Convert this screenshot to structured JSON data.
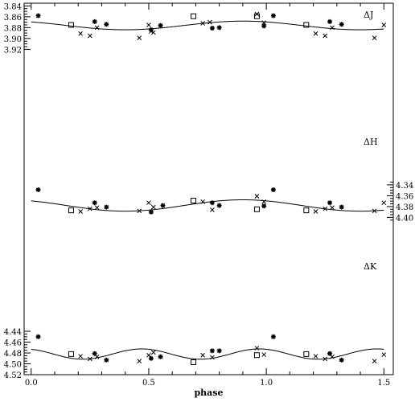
{
  "chart_data": {
    "type": "scatter",
    "title": "",
    "xlabel": "phase",
    "x_ticks": [
      "0.0",
      "0.5",
      "1.0",
      "1.5"
    ],
    "x_tick_values": [
      0,
      0.5,
      1.0,
      1.5
    ],
    "xlim": [
      -0.03,
      1.54
    ],
    "ylim": [
      4.52,
      3.835
    ],
    "y_inverted": true,
    "left_axis": {
      "ticks": [
        3.84,
        3.86,
        3.88,
        3.9,
        3.92,
        4.44,
        4.46,
        4.48,
        4.5,
        4.52
      ],
      "tick_labels": [
        "3.84",
        "3.86",
        "3.88",
        "3.90",
        "3.92",
        "4.44",
        "4.46",
        "4.48",
        "4.50",
        "4.52"
      ]
    },
    "right_axis": {
      "offset": -0.17,
      "ticks": [
        4.34,
        4.36,
        4.38,
        4.4
      ],
      "tick_labels": [
        "4.34",
        "4.36",
        "4.38",
        "4.40"
      ]
    },
    "grid": false,
    "panels": [
      {
        "name": "ΔJ",
        "axis": "left",
        "fit": {
          "mean": 3.876,
          "amplitude": 0.008,
          "phase_of_peak": 0.9,
          "harmonic": 1
        },
        "points": [
          {
            "marker": "star",
            "x": 0.03,
            "y": 3.858
          },
          {
            "marker": "star",
            "x": 0.27,
            "y": 3.869
          },
          {
            "marker": "star",
            "x": 0.32,
            "y": 3.874
          },
          {
            "marker": "star",
            "x": 0.51,
            "y": 3.884
          },
          {
            "marker": "star",
            "x": 0.55,
            "y": 3.876
          },
          {
            "marker": "star",
            "x": 0.77,
            "y": 3.881
          },
          {
            "marker": "star",
            "x": 0.8,
            "y": 3.88
          },
          {
            "marker": "star",
            "x": 0.99,
            "y": 3.877
          },
          {
            "marker": "star",
            "x": 1.03,
            "y": 3.858
          },
          {
            "marker": "star",
            "x": 1.27,
            "y": 3.869
          },
          {
            "marker": "star",
            "x": 1.32,
            "y": 3.874
          },
          {
            "marker": "cross",
            "x": 0.21,
            "y": 3.891
          },
          {
            "marker": "cross",
            "x": 0.25,
            "y": 3.895
          },
          {
            "marker": "cross",
            "x": 0.28,
            "y": 3.88
          },
          {
            "marker": "cross",
            "x": 0.46,
            "y": 3.899
          },
          {
            "marker": "cross",
            "x": 0.5,
            "y": 3.875
          },
          {
            "marker": "cross",
            "x": 0.51,
            "y": 3.887
          },
          {
            "marker": "cross",
            "x": 0.52,
            "y": 3.889
          },
          {
            "marker": "cross",
            "x": 0.73,
            "y": 3.872
          },
          {
            "marker": "cross",
            "x": 0.76,
            "y": 3.87
          },
          {
            "marker": "cross",
            "x": 0.96,
            "y": 3.855
          },
          {
            "marker": "cross",
            "x": 0.99,
            "y": 3.871
          },
          {
            "marker": "cross",
            "x": 1.21,
            "y": 3.891
          },
          {
            "marker": "cross",
            "x": 1.25,
            "y": 3.895
          },
          {
            "marker": "cross",
            "x": 1.28,
            "y": 3.88
          },
          {
            "marker": "cross",
            "x": 1.46,
            "y": 3.899
          },
          {
            "marker": "cross",
            "x": 1.5,
            "y": 3.875
          },
          {
            "marker": "square",
            "x": 0.17,
            "y": 3.875
          },
          {
            "marker": "square",
            "x": 0.69,
            "y": 3.859
          },
          {
            "marker": "square",
            "x": 0.96,
            "y": 3.859
          },
          {
            "marker": "square",
            "x": 1.17,
            "y": 3.875
          }
        ]
      },
      {
        "name": "ΔH",
        "axis": "right",
        "fit": {
          "mean": 4.378,
          "amplitude": 0.0105,
          "phase_of_peak": 0.9,
          "harmonic": 1
        },
        "points": [
          {
            "marker": "star",
            "x": 0.03,
            "y": 4.349
          },
          {
            "marker": "star",
            "x": 0.27,
            "y": 4.373
          },
          {
            "marker": "star",
            "x": 0.32,
            "y": 4.381
          },
          {
            "marker": "star",
            "x": 0.51,
            "y": 4.39
          },
          {
            "marker": "star",
            "x": 0.56,
            "y": 4.378
          },
          {
            "marker": "star",
            "x": 0.77,
            "y": 4.373
          },
          {
            "marker": "star",
            "x": 0.8,
            "y": 4.378
          },
          {
            "marker": "star",
            "x": 0.99,
            "y": 4.379
          },
          {
            "marker": "star",
            "x": 1.03,
            "y": 4.349
          },
          {
            "marker": "star",
            "x": 1.27,
            "y": 4.373
          },
          {
            "marker": "star",
            "x": 1.32,
            "y": 4.381
          },
          {
            "marker": "cross",
            "x": 0.21,
            "y": 4.389
          },
          {
            "marker": "cross",
            "x": 0.25,
            "y": 4.384
          },
          {
            "marker": "cross",
            "x": 0.28,
            "y": 4.382
          },
          {
            "marker": "cross",
            "x": 0.46,
            "y": 4.388
          },
          {
            "marker": "cross",
            "x": 0.5,
            "y": 4.373
          },
          {
            "marker": "cross",
            "x": 0.52,
            "y": 4.381
          },
          {
            "marker": "cross",
            "x": 0.73,
            "y": 4.371
          },
          {
            "marker": "cross",
            "x": 0.77,
            "y": 4.386
          },
          {
            "marker": "cross",
            "x": 0.96,
            "y": 4.361
          },
          {
            "marker": "cross",
            "x": 0.99,
            "y": 4.371
          },
          {
            "marker": "cross",
            "x": 1.21,
            "y": 4.389
          },
          {
            "marker": "cross",
            "x": 1.25,
            "y": 4.384
          },
          {
            "marker": "cross",
            "x": 1.28,
            "y": 4.382
          },
          {
            "marker": "cross",
            "x": 1.46,
            "y": 4.388
          },
          {
            "marker": "cross",
            "x": 1.5,
            "y": 4.373
          },
          {
            "marker": "square",
            "x": 0.17,
            "y": 4.387
          },
          {
            "marker": "square",
            "x": 0.69,
            "y": 4.369
          },
          {
            "marker": "square",
            "x": 0.96,
            "y": 4.385
          },
          {
            "marker": "square",
            "x": 1.17,
            "y": 4.387
          }
        ]
      },
      {
        "name": "ΔK",
        "axis": "left",
        "fit": {
          "mean": 4.482,
          "amplitude": 0.0095,
          "phase_of_peak": 0.97,
          "harmonic": 2
        },
        "points": [
          {
            "marker": "star",
            "x": 0.03,
            "y": 4.45
          },
          {
            "marker": "star",
            "x": 0.27,
            "y": 4.481
          },
          {
            "marker": "star",
            "x": 0.32,
            "y": 4.493
          },
          {
            "marker": "star",
            "x": 0.51,
            "y": 4.49
          },
          {
            "marker": "star",
            "x": 0.55,
            "y": 4.487
          },
          {
            "marker": "star",
            "x": 0.77,
            "y": 4.476
          },
          {
            "marker": "star",
            "x": 0.8,
            "y": 4.476
          },
          {
            "marker": "star",
            "x": 1.03,
            "y": 4.45
          },
          {
            "marker": "star",
            "x": 1.27,
            "y": 4.481
          },
          {
            "marker": "star",
            "x": 1.32,
            "y": 4.493
          },
          {
            "marker": "cross",
            "x": 0.21,
            "y": 4.486
          },
          {
            "marker": "cross",
            "x": 0.25,
            "y": 4.491
          },
          {
            "marker": "cross",
            "x": 0.28,
            "y": 4.487
          },
          {
            "marker": "cross",
            "x": 0.46,
            "y": 4.495
          },
          {
            "marker": "cross",
            "x": 0.5,
            "y": 4.484
          },
          {
            "marker": "cross",
            "x": 0.52,
            "y": 4.479
          },
          {
            "marker": "cross",
            "x": 0.73,
            "y": 4.484
          },
          {
            "marker": "cross",
            "x": 0.77,
            "y": 4.488
          },
          {
            "marker": "cross",
            "x": 0.96,
            "y": 4.471
          },
          {
            "marker": "cross",
            "x": 0.99,
            "y": 4.483
          },
          {
            "marker": "cross",
            "x": 1.21,
            "y": 4.486
          },
          {
            "marker": "cross",
            "x": 1.25,
            "y": 4.491
          },
          {
            "marker": "cross",
            "x": 1.28,
            "y": 4.487
          },
          {
            "marker": "cross",
            "x": 1.46,
            "y": 4.495
          },
          {
            "marker": "cross",
            "x": 1.5,
            "y": 4.483
          },
          {
            "marker": "square",
            "x": 0.17,
            "y": 4.482
          },
          {
            "marker": "square",
            "x": 0.69,
            "y": 4.497
          },
          {
            "marker": "square",
            "x": 0.96,
            "y": 4.484
          },
          {
            "marker": "square",
            "x": 1.17,
            "y": 4.482
          }
        ]
      }
    ]
  }
}
